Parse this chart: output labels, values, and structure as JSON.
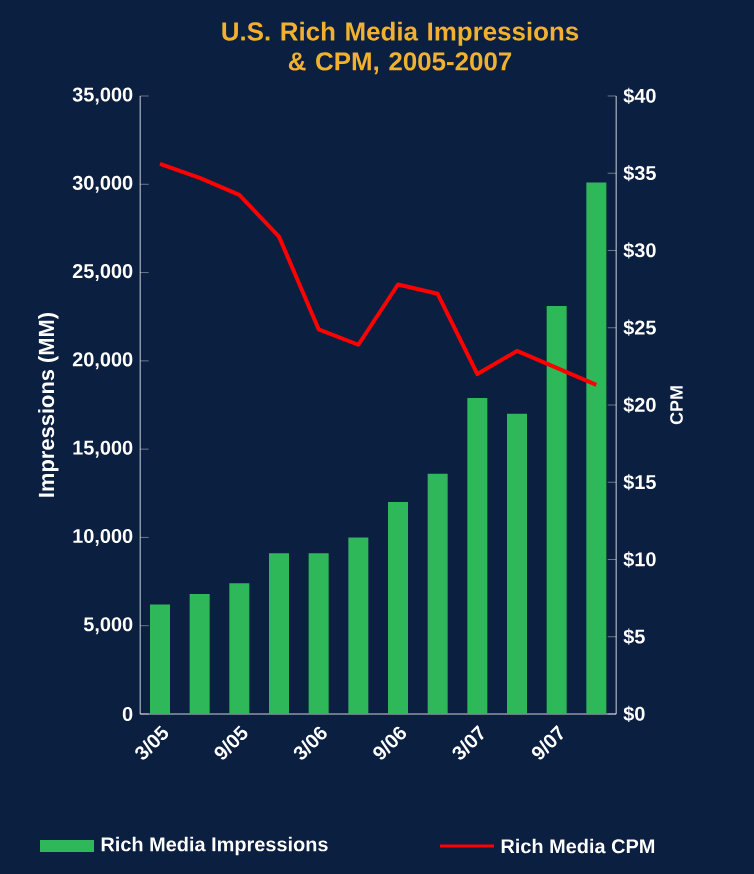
{
  "chart_data": {
    "type": "bar",
    "title": "U.S. Rich Media Impressions & CPM, 2005-2007",
    "categories": [
      "3/05",
      null,
      "9/05",
      null,
      "3/06",
      null,
      "9/06",
      null,
      "3/07",
      null,
      "9/07",
      null
    ],
    "ylabel": "Impressions (MM)",
    "y2label": "CPM",
    "ylim": [
      0,
      35000
    ],
    "yticks": [
      0,
      {
        "value": 5000,
        "label": "5,000"
      },
      {
        "value": 10000,
        "label": "10,000"
      },
      {
        "value": 15000,
        "label": "15,000"
      },
      {
        "value": 20000,
        "label": "20,000"
      },
      {
        "value": 25000,
        "label": "25,000"
      },
      {
        "value": 30000,
        "label": "30,000"
      },
      {
        "value": 35000,
        "label": "35,000"
      }
    ],
    "y2lim": [
      0,
      40
    ],
    "y2ticks": [
      {
        "value": 0,
        "label": "$0"
      },
      {
        "value": 5,
        "label": "$5"
      },
      {
        "value": 10,
        "label": "$10"
      },
      {
        "value": 15,
        "label": "$15"
      },
      {
        "value": 20,
        "label": "$20"
      },
      {
        "value": 25,
        "label": "$25"
      },
      {
        "value": 30,
        "label": "$30"
      },
      {
        "value": 35,
        "label": "$35"
      },
      {
        "value": 40,
        "label": "$40"
      }
    ],
    "series": [
      {
        "name": "Rich Media Impressions",
        "color": "#2fb85a",
        "values": [
          6200,
          6800,
          7400,
          9100,
          9100,
          10000,
          12000,
          13600,
          17900,
          17000,
          23100,
          30100
        ]
      },
      {
        "name": "Rich Media CPM",
        "type": "line",
        "axis": "y2",
        "color": "#ff0000",
        "values": [
          35.6,
          34.7,
          33.6,
          30.9,
          24.9,
          23.9,
          27.8,
          27.2,
          22.0,
          23.5,
          22.4,
          21.3
        ]
      }
    ],
    "legend": "bottom"
  }
}
